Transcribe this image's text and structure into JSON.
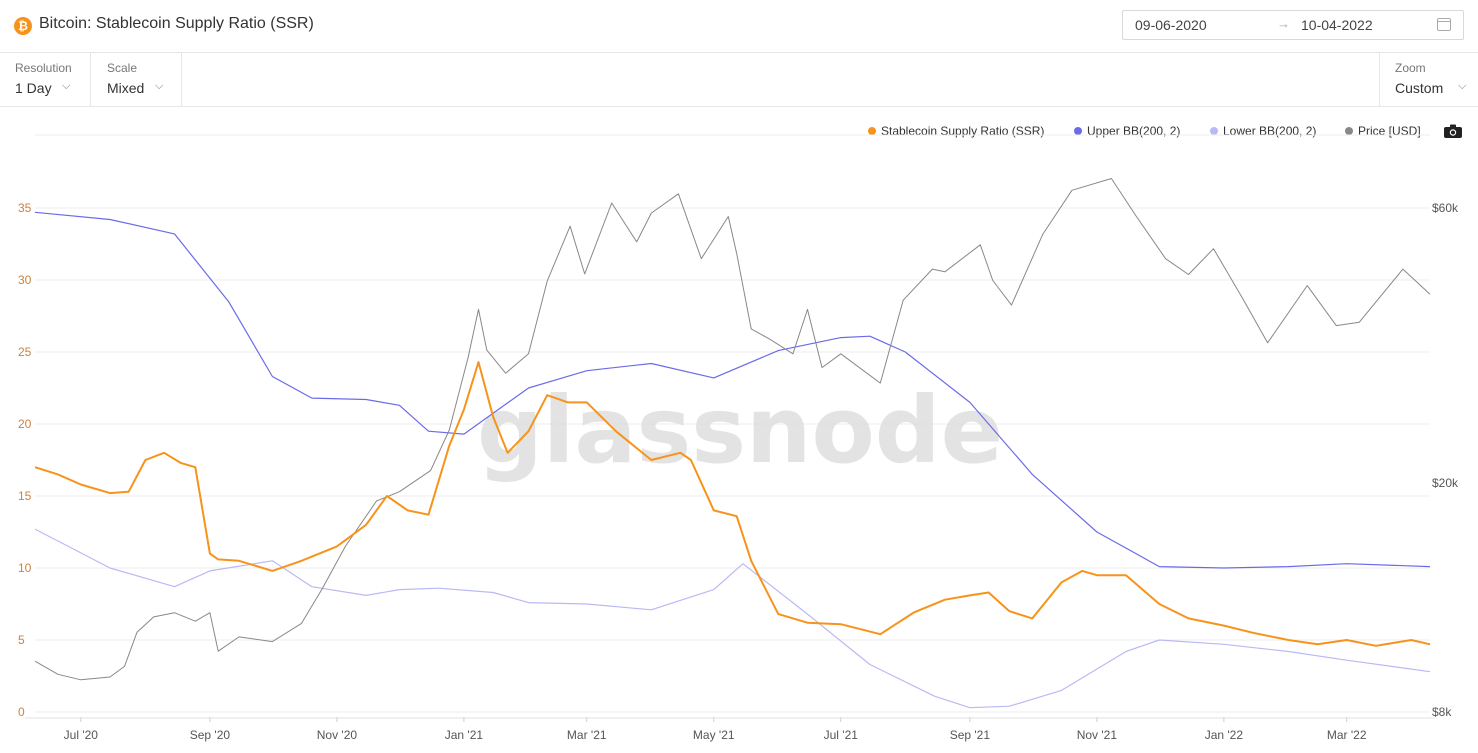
{
  "header": {
    "title": "Bitcoin: Stablecoin Supply Ratio (SSR)",
    "coin_icon": "bitcoin-icon",
    "coin_symbol": "₿",
    "date_start": "09-06-2020",
    "date_arrow": "→",
    "date_end": "10-04-2022",
    "calendar_icon": "calendar-icon"
  },
  "toolbar": {
    "resolution_label": "Resolution",
    "resolution_value": "1 Day",
    "scale_label": "Scale",
    "scale_value": "Mixed",
    "zoom_label": "Zoom",
    "zoom_value": "Custom",
    "chevron": "⌵"
  },
  "legend": [
    {
      "name": "Stablecoin Supply Ratio (SSR)",
      "color": "#f7931a"
    },
    {
      "name": "Upper BB(200, 2)",
      "color": "#6b6bea"
    },
    {
      "name": "Lower BB(200, 2)",
      "color": "#b9b9f5"
    },
    {
      "name": "Price [USD]",
      "color": "#888888"
    }
  ],
  "watermark": "glassnode",
  "chart_data": {
    "type": "line",
    "title": "Bitcoin: Stablecoin Supply Ratio (SSR)",
    "x_ticks": [
      "Jul '20",
      "Sep '20",
      "Nov '20",
      "Jan '21",
      "Mar '21",
      "May '21",
      "Jul '21",
      "Sep '21",
      "Nov '21",
      "Jan '22",
      "Mar '22"
    ],
    "x_range": [
      "2020-06-09",
      "2022-04-10"
    ],
    "y_left": {
      "ticks": [
        "0",
        "5",
        "10",
        "15",
        "20",
        "25",
        "30",
        "35"
      ],
      "ylim": [
        0,
        35
      ],
      "scale": "linear"
    },
    "y_right": {
      "ticks": [
        "$8k",
        "$20k",
        "$60k"
      ],
      "ylim": [
        8000,
        60000
      ],
      "scale": "log"
    },
    "grid": true,
    "legend_position": "top-right",
    "series": [
      {
        "name": "Stablecoin Supply Ratio (SSR)",
        "axis": "left",
        "color": "#f7931a",
        "x": [
          "2020-06-09",
          "2020-06-20",
          "2020-07-01",
          "2020-07-15",
          "2020-07-24",
          "2020-08-01",
          "2020-08-10",
          "2020-08-18",
          "2020-08-25",
          "2020-09-01",
          "2020-09-05",
          "2020-09-15",
          "2020-10-01",
          "2020-10-15",
          "2020-11-01",
          "2020-11-15",
          "2020-11-25",
          "2020-12-05",
          "2020-12-15",
          "2020-12-25",
          "2021-01-01",
          "2021-01-08",
          "2021-01-15",
          "2021-01-22",
          "2021-02-01",
          "2021-02-10",
          "2021-02-20",
          "2021-03-01",
          "2021-03-15",
          "2021-04-01",
          "2021-04-15",
          "2021-04-20",
          "2021-05-01",
          "2021-05-12",
          "2021-05-19",
          "2021-06-01",
          "2021-06-15",
          "2021-07-01",
          "2021-07-20",
          "2021-08-05",
          "2021-08-20",
          "2021-09-01",
          "2021-09-10",
          "2021-09-20",
          "2021-10-01",
          "2021-10-15",
          "2021-10-25",
          "2021-11-01",
          "2021-11-15",
          "2021-12-01",
          "2021-12-15",
          "2022-01-01",
          "2022-01-15",
          "2022-02-01",
          "2022-02-15",
          "2022-03-01",
          "2022-03-15",
          "2022-04-01",
          "2022-04-10"
        ],
        "y": [
          17,
          16.5,
          15.8,
          15.2,
          15.3,
          17.5,
          18,
          17.3,
          17,
          11,
          10.6,
          10.5,
          9.8,
          10.5,
          11.5,
          13,
          15,
          14,
          13.7,
          18.5,
          21,
          24.3,
          20.5,
          18,
          19.5,
          22,
          21.5,
          21.5,
          19.5,
          17.5,
          18,
          17.5,
          14,
          13.6,
          10.5,
          6.8,
          6.2,
          6.1,
          5.4,
          6.9,
          7.8,
          8.1,
          8.3,
          7,
          6.5,
          9,
          9.8,
          9.5,
          9.5,
          7.5,
          6.5,
          6,
          5.5,
          5,
          4.7,
          5,
          4.6,
          5,
          4.7
        ]
      },
      {
        "name": "Upper BB(200, 2)",
        "axis": "left",
        "color": "#6b6bea",
        "x": [
          "2020-06-09",
          "2020-07-15",
          "2020-08-15",
          "2020-09-10",
          "2020-10-01",
          "2020-10-20",
          "2020-11-15",
          "2020-12-01",
          "2020-12-15",
          "2021-01-01",
          "2021-02-01",
          "2021-03-01",
          "2021-04-01",
          "2021-05-01",
          "2021-06-01",
          "2021-07-01",
          "2021-07-15",
          "2021-08-01",
          "2021-09-01",
          "2021-10-01",
          "2021-11-01",
          "2021-12-01",
          "2022-01-01",
          "2022-02-01",
          "2022-03-01",
          "2022-04-10"
        ],
        "y": [
          34.7,
          34.2,
          33.2,
          28.5,
          23.3,
          21.8,
          21.7,
          21.3,
          19.5,
          19.3,
          22.5,
          23.7,
          24.2,
          23.2,
          25.1,
          26,
          26.1,
          25,
          21.5,
          16.5,
          12.5,
          10.1,
          10,
          10.1,
          10.3,
          10.1
        ]
      },
      {
        "name": "Lower BB(200, 2)",
        "axis": "left",
        "color": "#b9b9f5",
        "x": [
          "2020-06-09",
          "2020-07-15",
          "2020-08-15",
          "2020-09-01",
          "2020-10-01",
          "2020-10-20",
          "2020-11-15",
          "2020-12-01",
          "2020-12-20",
          "2021-01-15",
          "2021-02-01",
          "2021-03-01",
          "2021-04-01",
          "2021-05-01",
          "2021-05-15",
          "2021-06-15",
          "2021-07-15",
          "2021-08-15",
          "2021-09-01",
          "2021-09-20",
          "2021-10-15",
          "2021-11-15",
          "2021-12-01",
          "2022-01-01",
          "2022-02-01",
          "2022-03-01",
          "2022-04-10"
        ],
        "y": [
          12.7,
          10,
          8.7,
          9.8,
          10.5,
          8.7,
          8.1,
          8.5,
          8.6,
          8.3,
          7.6,
          7.5,
          7.1,
          8.5,
          10.3,
          6.8,
          3.3,
          1.1,
          0.3,
          0.4,
          1.5,
          4.2,
          5,
          4.7,
          4.2,
          3.6,
          2.8
        ]
      },
      {
        "name": "Price [USD]",
        "axis": "right",
        "color": "#888888",
        "x": [
          "2020-06-09",
          "2020-06-20",
          "2020-07-01",
          "2020-07-15",
          "2020-07-22",
          "2020-07-28",
          "2020-08-05",
          "2020-08-15",
          "2020-08-25",
          "2020-09-01",
          "2020-09-05",
          "2020-09-15",
          "2020-10-01",
          "2020-10-15",
          "2020-10-25",
          "2020-11-05",
          "2020-11-20",
          "2020-12-01",
          "2020-12-16",
          "2020-12-25",
          "2021-01-03",
          "2021-01-08",
          "2021-01-12",
          "2021-01-21",
          "2021-02-01",
          "2021-02-10",
          "2021-02-21",
          "2021-02-28",
          "2021-03-13",
          "2021-03-25",
          "2021-04-01",
          "2021-04-14",
          "2021-04-25",
          "2021-05-08",
          "2021-05-12",
          "2021-05-19",
          "2021-05-28",
          "2021-06-08",
          "2021-06-15",
          "2021-06-22",
          "2021-07-01",
          "2021-07-20",
          "2021-07-31",
          "2021-08-14",
          "2021-08-20",
          "2021-09-06",
          "2021-09-12",
          "2021-09-21",
          "2021-10-06",
          "2021-10-20",
          "2021-11-08",
          "2021-11-20",
          "2021-12-04",
          "2021-12-15",
          "2021-12-27",
          "2022-01-10",
          "2022-01-22",
          "2022-02-10",
          "2022-02-24",
          "2022-03-07",
          "2022-03-28",
          "2022-04-10"
        ],
        "y": [
          9800,
          9300,
          9100,
          9200,
          9600,
          11000,
          11700,
          11900,
          11500,
          11900,
          10200,
          10800,
          10600,
          11400,
          13100,
          15500,
          18600,
          19300,
          21000,
          24700,
          33000,
          40000,
          34000,
          31000,
          33500,
          44800,
          55800,
          46100,
          61200,
          52400,
          58800,
          63500,
          49000,
          58000,
          50000,
          37000,
          35500,
          33500,
          40000,
          31700,
          33500,
          29800,
          41500,
          47000,
          46500,
          51800,
          44900,
          40700,
          54000,
          64400,
          67500,
          58000,
          49000,
          46000,
          51000,
          41800,
          35000,
          44000,
          37500,
          38000,
          47000,
          42500
        ]
      }
    ]
  }
}
